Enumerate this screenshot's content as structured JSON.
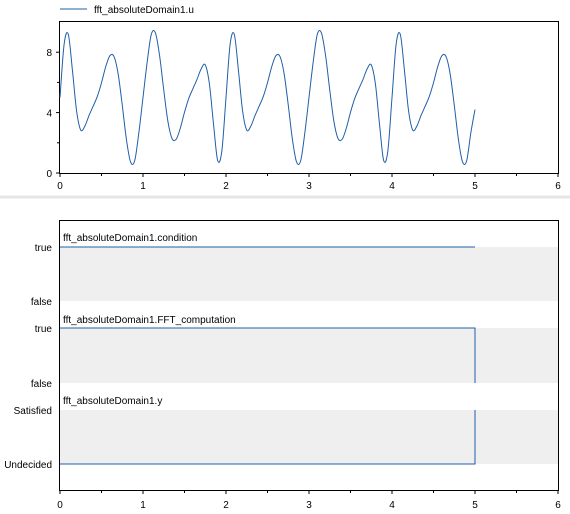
{
  "colors": {
    "line": "#1f5fa8",
    "band": "#efefef",
    "frame": "#000000",
    "separator": "#e6e6e6"
  },
  "chart_data": [
    {
      "type": "line",
      "legend": "fft_absoluteDomain1.u",
      "legend_position": "top-left",
      "xlim": [
        0,
        6
      ],
      "ylim": [
        0,
        10
      ],
      "xticks": [
        "0",
        "1",
        "2",
        "3",
        "4",
        "5",
        "6"
      ],
      "yticks": [
        "0",
        "4",
        "8"
      ],
      "ytick_values": [
        0,
        4,
        8
      ],
      "series": [
        {
          "name": "fft_absoluteDomain1.u",
          "x": [
            0,
            0.05,
            0.1,
            0.15,
            0.2,
            0.25,
            0.3,
            0.35,
            0.4,
            0.45,
            0.5,
            0.55,
            0.6,
            0.65,
            0.7,
            0.75,
            0.8,
            0.85,
            0.9,
            0.95,
            1.0,
            1.05,
            1.1,
            1.15,
            1.2,
            1.25,
            1.3,
            1.35,
            1.4,
            1.45,
            1.5,
            1.55,
            1.6,
            1.65,
            1.7,
            1.75,
            1.8,
            1.85,
            1.9,
            1.95,
            2.0,
            2.05,
            2.1,
            2.15,
            2.2,
            2.25,
            2.3,
            2.35,
            2.4,
            2.45,
            2.5,
            2.55,
            2.6,
            2.65,
            2.7,
            2.75,
            2.8,
            2.85,
            2.9,
            2.95,
            3.0,
            3.05,
            3.1,
            3.15,
            3.2,
            3.25,
            3.3,
            3.35,
            3.4,
            3.45,
            3.5,
            3.55,
            3.6,
            3.65,
            3.7,
            3.75,
            3.8,
            3.85,
            3.9,
            3.95,
            4.0,
            4.05,
            4.1,
            4.15,
            4.2,
            4.25,
            4.3,
            4.35,
            4.4,
            4.45,
            4.5,
            4.55,
            4.6,
            4.65,
            4.7,
            4.75,
            4.8,
            4.85,
            4.9,
            4.95,
            5.0
          ],
          "y": [
            5.0,
            8.54,
            9.18,
            6.79,
            4.1,
            2.84,
            3.11,
            3.81,
            4.43,
            5.08,
            5.98,
            7.02,
            7.76,
            7.72,
            6.58,
            4.5,
            2.23,
            0.73,
            0.82,
            2.67,
            5.0,
            7.33,
            9.18,
            9.27,
            7.77,
            5.5,
            3.42,
            2.28,
            2.24,
            2.98,
            4.02,
            4.92,
            5.57,
            6.19,
            6.89,
            7.16,
            5.9,
            3.21,
            0.82,
            1.46,
            5.0,
            8.54,
            9.18,
            6.79,
            4.1,
            2.84,
            3.11,
            3.81,
            4.43,
            5.08,
            5.98,
            7.02,
            7.76,
            7.72,
            6.58,
            4.5,
            2.23,
            0.73,
            0.82,
            2.67,
            5.0,
            7.33,
            9.18,
            9.27,
            7.77,
            5.5,
            3.42,
            2.28,
            2.24,
            2.98,
            4.02,
            4.92,
            5.57,
            6.19,
            6.89,
            7.16,
            5.9,
            3.21,
            0.82,
            1.46,
            5.0,
            8.54,
            9.18,
            6.79,
            4.1,
            2.84,
            3.11,
            3.81,
            4.43,
            5.08,
            5.98,
            7.02,
            7.76,
            7.72,
            6.58,
            4.5,
            2.23,
            0.73,
            0.82,
            2.67,
            4.2
          ]
        }
      ]
    },
    {
      "type": "line",
      "subtype": "digital-states",
      "xlim": [
        0,
        6
      ],
      "xticks": [
        "0",
        "1",
        "2",
        "3",
        "4",
        "5",
        "6"
      ],
      "series": [
        {
          "name": "fft_absoluteDomain1.condition",
          "states": [
            "false",
            "true"
          ],
          "x": [
            0,
            5
          ],
          "values": [
            "true",
            "true"
          ]
        },
        {
          "name": "fft_absoluteDomain1.FFT_computation",
          "states": [
            "false",
            "true"
          ],
          "x": [
            0,
            5,
            5
          ],
          "values": [
            "true",
            "true",
            "false"
          ]
        },
        {
          "name": "fft_absoluteDomain1.y",
          "states": [
            "Undecided",
            "Satisfied"
          ],
          "x": [
            0,
            5,
            5
          ],
          "values": [
            "Undecided",
            "Undecided",
            "Satisfied"
          ]
        }
      ]
    }
  ]
}
